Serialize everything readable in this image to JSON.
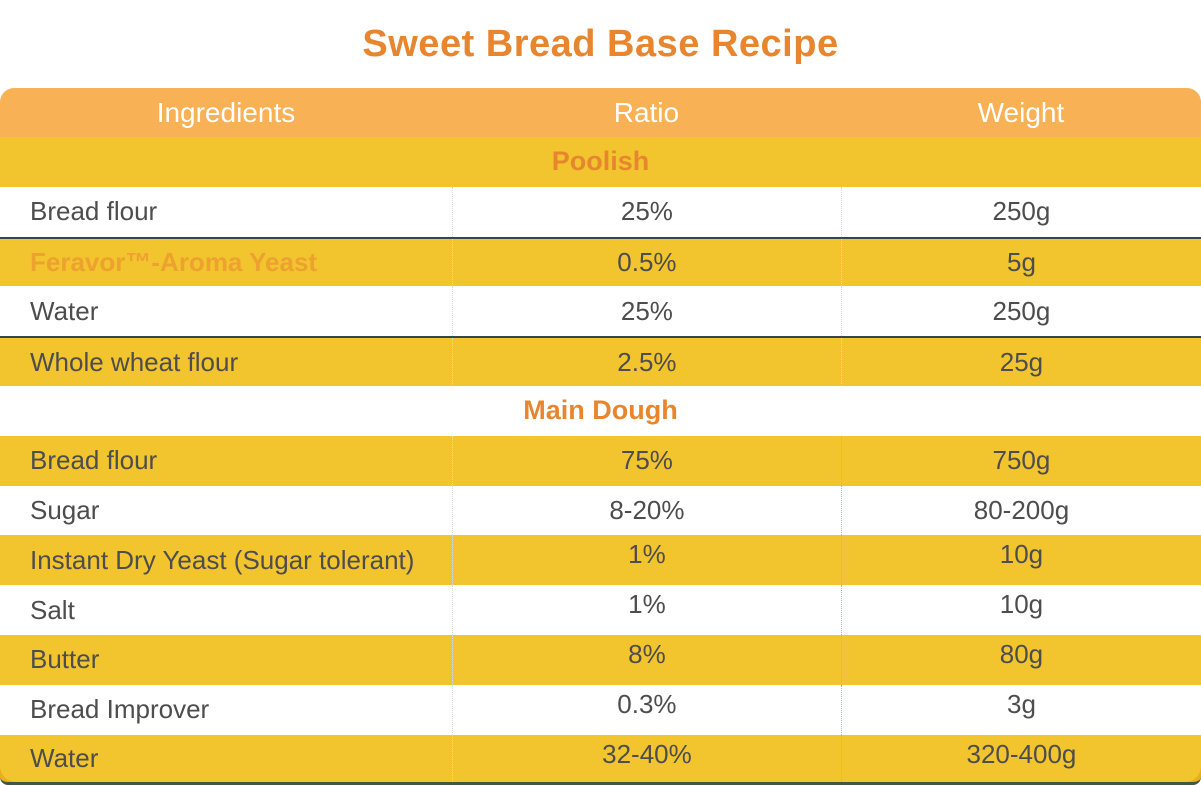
{
  "title": "Sweet Bread Base Recipe",
  "colors": {
    "title_text": "#E8862F",
    "header_bg": "#F8B155",
    "header_text": "#FFFFFF",
    "row_yellow": "#F2C52E",
    "row_white": "#FFFFFF",
    "section_text": "#E8862F",
    "brand_text": "#EDA12F",
    "body_text": "#4D4D4D",
    "divider_line": "#31474D",
    "bottom_border": "#3E5940",
    "corner_accent": "#E8AF1A",
    "separator_gray": "#D9D9D9",
    "separator_orange": "#F0A95C"
  },
  "table": {
    "columns": [
      "Ingredients",
      "Ratio",
      "Weight"
    ],
    "sections": [
      {
        "name": "Poolish",
        "weight_separator": "gray",
        "rows": [
          {
            "ingredient": "Bread flour",
            "ratio": "25%",
            "weight": "250g"
          },
          {
            "ingredient": "Feravor™-Aroma Yeast",
            "ratio": "0.5%",
            "weight": "5g",
            "brand": true,
            "divider_above": true
          },
          {
            "ingredient": "Water",
            "ratio": "25%",
            "weight": "250g"
          },
          {
            "ingredient": "Whole wheat flour",
            "ratio": "2.5%",
            "weight": "25g",
            "divider_above": true
          }
        ]
      },
      {
        "name": "Main Dough",
        "weight_separator": "orange",
        "rows": [
          {
            "ingredient": "Bread flour",
            "ratio": "75%",
            "weight": "750g"
          },
          {
            "ingredient": "Sugar",
            "ratio": "8-20%",
            "weight": "80-200g"
          },
          {
            "ingredient": "Instant Dry Yeast (Sugar tolerant)",
            "ratio": "1%",
            "weight": "10g"
          },
          {
            "ingredient": "Salt",
            "ratio": "1%",
            "weight": "10g"
          },
          {
            "ingredient": "Butter",
            "ratio": "8%",
            "weight": "80g"
          },
          {
            "ingredient": "Bread Improver",
            "ratio": "0.3%",
            "weight": "3g"
          },
          {
            "ingredient": "Water",
            "ratio": "32-40%",
            "weight": "320-400g"
          }
        ]
      }
    ]
  }
}
